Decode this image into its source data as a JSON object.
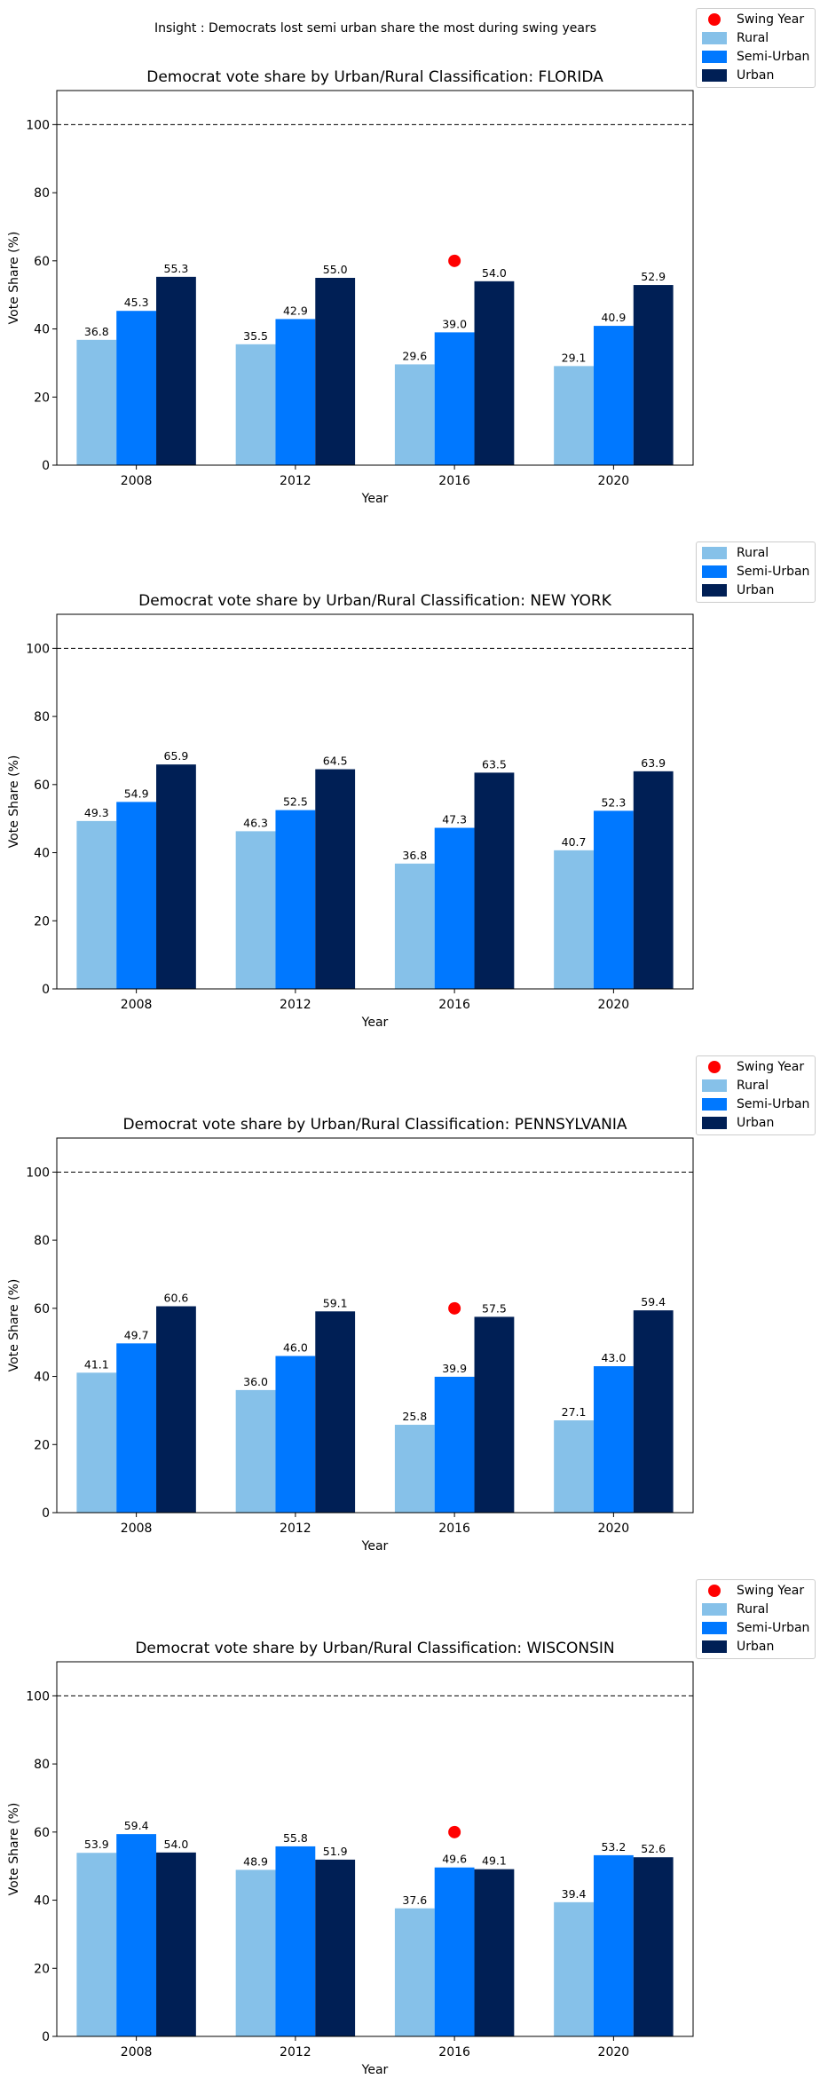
{
  "insight": "Insight : Democrats lost semi urban share the most during swing years",
  "legend_labels": {
    "swing": "Swing Year",
    "rural": "Rural",
    "semi": "Semi-Urban",
    "urban": "Urban"
  },
  "colors": {
    "rural": "#86c1e9",
    "semi": "#0078ff",
    "urban": "#001f55",
    "swing": "#ff0000",
    "refline": "#000000"
  },
  "chart_data": [
    {
      "type": "bar",
      "title": "Democrat vote share by Urban/Rural Classification: FLORIDA",
      "xlabel": "Year",
      "ylabel": "Vote Share (%)",
      "ylim": [
        0,
        110
      ],
      "yticks": [
        0,
        20,
        40,
        60,
        80,
        100
      ],
      "categories": [
        "2008",
        "2012",
        "2016",
        "2020"
      ],
      "series": [
        {
          "name": "Rural",
          "values": [
            36.8,
            35.5,
            29.6,
            29.1
          ]
        },
        {
          "name": "Semi-Urban",
          "values": [
            45.3,
            42.9,
            39.0,
            40.9
          ]
        },
        {
          "name": "Urban",
          "values": [
            55.3,
            55.0,
            54.0,
            52.9
          ]
        }
      ],
      "swing_years": [
        {
          "x": "2016",
          "y": 60
        }
      ],
      "reference_line": 100,
      "legend_position": "upper-right-outside"
    },
    {
      "type": "bar",
      "title": "Democrat vote share by Urban/Rural Classification: NEW YORK",
      "xlabel": "Year",
      "ylabel": "Vote Share (%)",
      "ylim": [
        0,
        110
      ],
      "yticks": [
        0,
        20,
        40,
        60,
        80,
        100
      ],
      "categories": [
        "2008",
        "2012",
        "2016",
        "2020"
      ],
      "series": [
        {
          "name": "Rural",
          "values": [
            49.3,
            46.3,
            36.8,
            40.7
          ]
        },
        {
          "name": "Semi-Urban",
          "values": [
            54.9,
            52.5,
            47.3,
            52.3
          ]
        },
        {
          "name": "Urban",
          "values": [
            65.9,
            64.5,
            63.5,
            63.9
          ]
        }
      ],
      "swing_years": [],
      "reference_line": 100,
      "legend_position": "upper-right-outside"
    },
    {
      "type": "bar",
      "title": "Democrat vote share by Urban/Rural Classification: PENNSYLVANIA",
      "xlabel": "Year",
      "ylabel": "Vote Share (%)",
      "ylim": [
        0,
        110
      ],
      "yticks": [
        0,
        20,
        40,
        60,
        80,
        100
      ],
      "categories": [
        "2008",
        "2012",
        "2016",
        "2020"
      ],
      "series": [
        {
          "name": "Rural",
          "values": [
            41.1,
            36.0,
            25.8,
            27.1
          ]
        },
        {
          "name": "Semi-Urban",
          "values": [
            49.7,
            46.0,
            39.9,
            43.0
          ]
        },
        {
          "name": "Urban",
          "values": [
            60.6,
            59.1,
            57.5,
            59.4
          ]
        }
      ],
      "swing_years": [
        {
          "x": "2016",
          "y": 60
        }
      ],
      "reference_line": 100,
      "legend_position": "upper-right-outside"
    },
    {
      "type": "bar",
      "title": "Democrat vote share by Urban/Rural Classification: WISCONSIN",
      "xlabel": "Year",
      "ylabel": "Vote Share (%)",
      "ylim": [
        0,
        110
      ],
      "yticks": [
        0,
        20,
        40,
        60,
        80,
        100
      ],
      "categories": [
        "2008",
        "2012",
        "2016",
        "2020"
      ],
      "series": [
        {
          "name": "Rural",
          "values": [
            53.9,
            48.9,
            37.6,
            39.4
          ]
        },
        {
          "name": "Semi-Urban",
          "values": [
            59.4,
            55.8,
            49.6,
            53.2
          ]
        },
        {
          "name": "Urban",
          "values": [
            54.0,
            51.9,
            49.1,
            52.6
          ]
        }
      ],
      "swing_years": [
        {
          "x": "2016",
          "y": 60
        }
      ],
      "reference_line": 100,
      "legend_position": "upper-right-outside"
    }
  ]
}
